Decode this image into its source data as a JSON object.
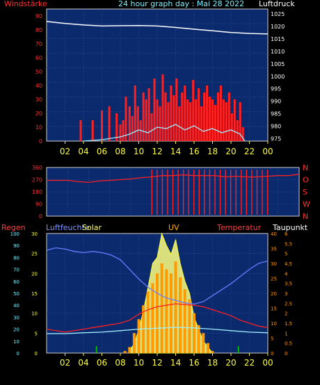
{
  "header": {
    "left_label": "Windstärke",
    "center_label": "24 hour graph day : Mai 28 2022",
    "right_label": "Luftdruck"
  },
  "colors": {
    "plot_bg": "#0b2a6e",
    "frame": "#000000",
    "grid": "#3a5cae",
    "red": "#ff2020",
    "white": "#ffffff",
    "cyan": "#a0f0ff",
    "yellow": "#ffff40",
    "orange": "#ff9a00",
    "blue_line": "#6a7cff",
    "green": "#00d000",
    "wind_axis": "#ff3030",
    "pressure_axis": "#ffffff",
    "time_axis": "#ffff40",
    "label_cyan": "#7ff0ff"
  },
  "chart_data": [
    {
      "type": "line",
      "title": "24 hour graph day : Mai 28 2022",
      "xlabel": "",
      "x_ticks": [
        "02",
        "04",
        "06",
        "08",
        "10",
        "12",
        "14",
        "16",
        "18",
        "20",
        "22",
        "00"
      ],
      "y_left": {
        "label": "Windstärke",
        "ticks": [
          0,
          10,
          20,
          30,
          40,
          50,
          60,
          70,
          80,
          90
        ],
        "ylim": [
          0,
          95
        ]
      },
      "y_right": {
        "label": "Luftdruck",
        "ticks": [
          975,
          980,
          985,
          990,
          995,
          1000,
          1005,
          1010,
          1015,
          1020,
          1025
        ],
        "ylim": [
          974,
          1027
        ]
      },
      "series": [
        {
          "name": "Luftdruck",
          "axis": "right",
          "color": "white",
          "x": [
            0,
            2,
            4,
            6,
            8,
            10,
            12,
            14,
            16,
            18,
            20,
            22,
            24
          ],
          "values": [
            1022,
            1021.2,
            1020.6,
            1020.2,
            1020.3,
            1020.4,
            1020.2,
            1019.6,
            1018.9,
            1018.3,
            1017.6,
            1017.2,
            1017.0
          ]
        },
        {
          "name": "Böen",
          "axis": "left",
          "color": "red",
          "x": [
            3.7,
            3.9,
            5.0,
            5.4,
            6.0,
            6.3,
            6.8,
            7.2,
            7.6,
            8.0,
            8.3,
            8.6,
            9.0,
            9.3,
            9.6,
            9.9,
            10.2,
            10.5,
            10.8,
            11.1,
            11.4,
            11.7,
            12.0,
            12.3,
            12.6,
            12.9,
            13.2,
            13.5,
            13.8,
            14.1,
            14.4,
            14.7,
            15.0,
            15.3,
            15.6,
            15.9,
            16.2,
            16.5,
            16.8,
            17.1,
            17.4,
            17.7,
            18.0,
            18.3,
            18.6,
            18.9,
            19.2,
            19.5,
            19.8,
            20.1,
            20.4,
            20.7,
            21.0,
            21.3
          ],
          "values": [
            15,
            0,
            15,
            0,
            22,
            0,
            25,
            0,
            20,
            12,
            15,
            32,
            25,
            18,
            40,
            25,
            15,
            35,
            30,
            38,
            20,
            45,
            30,
            25,
            48,
            35,
            28,
            40,
            33,
            45,
            25,
            35,
            40,
            30,
            28,
            44,
            30,
            38,
            25,
            35,
            40,
            32,
            30,
            26,
            35,
            40,
            30,
            28,
            35,
            20,
            30,
            15,
            28,
            10
          ]
        },
        {
          "name": "Wind",
          "axis": "left",
          "color": "cyan",
          "x": [
            4,
            6,
            7,
            8,
            9,
            10,
            11,
            12,
            13,
            14,
            15,
            16,
            17,
            18,
            19,
            20,
            21,
            21.5
          ],
          "values": [
            0,
            1,
            2,
            3,
            5,
            8,
            6,
            10,
            9,
            12,
            8,
            11,
            7,
            9,
            6,
            8,
            5,
            0
          ]
        }
      ]
    },
    {
      "type": "scatter",
      "title": "",
      "y_left": {
        "label": "",
        "ticks": [
          0,
          90,
          180,
          270,
          360
        ],
        "ylim": [
          0,
          360
        ]
      },
      "y_right": {
        "label": "",
        "ticks": [
          "N",
          "W",
          "S",
          "O",
          "N"
        ]
      },
      "series": [
        {
          "name": "Windrichtung",
          "color": "red",
          "x": [
            0,
            2,
            3,
            4,
            5,
            6,
            7,
            8,
            9,
            10,
            11,
            12,
            13,
            14,
            15,
            16,
            17,
            18,
            19,
            20,
            21,
            22,
            23,
            24
          ],
          "values": [
            265,
            265,
            255,
            250,
            260,
            265,
            270,
            275,
            285,
            290,
            300,
            300,
            305,
            300,
            300,
            300,
            290,
            295,
            290,
            290,
            295,
            300,
            300,
            310
          ]
        }
      ]
    },
    {
      "type": "line",
      "title": "",
      "labels": [
        "Regen",
        "Luftfeuchte",
        "Solar",
        "UV",
        "Temperatur",
        "Taupunkt"
      ],
      "x_ticks": [
        "02",
        "04",
        "06",
        "08",
        "10",
        "12",
        "14",
        "16",
        "18",
        "20",
        "22",
        "00"
      ],
      "axis_regen": {
        "ticks": [
          0,
          10,
          20,
          30,
          40,
          50,
          60,
          70,
          80,
          90,
          100
        ],
        "ylim": [
          0,
          100
        ]
      },
      "axis_feuchte": {
        "ticks": [
          0,
          5,
          10,
          15,
          20,
          25,
          30
        ],
        "ylim": [
          0,
          30
        ]
      },
      "axis_temp": {
        "ticks": [
          0,
          5,
          10,
          15,
          20,
          25,
          30,
          35,
          40
        ],
        "ylim": [
          0,
          40
        ]
      },
      "axis_uv": {
        "ticks": [
          0,
          0.5,
          1,
          1.5,
          2,
          2.5,
          3,
          3.5,
          4,
          4.5,
          5,
          5.5,
          6
        ],
        "ylim": [
          0,
          6
        ]
      },
      "series": [
        {
          "name": "Luftfeuchte",
          "color": "blue",
          "x": [
            0,
            1,
            2,
            3,
            4,
            5,
            6,
            7,
            8,
            9,
            10,
            11,
            12,
            13,
            14,
            15,
            16,
            17,
            18,
            19,
            20,
            21,
            22,
            23,
            24
          ],
          "values": [
            86,
            88,
            87,
            85,
            84,
            85,
            84,
            82,
            78,
            70,
            62,
            55,
            50,
            46,
            44,
            42,
            41,
            43,
            48,
            53,
            58,
            64,
            70,
            75,
            77
          ]
        },
        {
          "name": "Temperatur",
          "color": "red",
          "x": [
            0,
            2,
            4,
            6,
            8,
            9,
            10,
            11,
            12,
            13,
            14,
            15,
            16,
            17,
            18,
            19,
            20,
            21,
            22,
            23,
            24
          ],
          "values": [
            8,
            7,
            8,
            9,
            10,
            11,
            13,
            14.5,
            15.5,
            16,
            16.5,
            16.2,
            16,
            15.5,
            14.5,
            13.5,
            12.5,
            11,
            10,
            9,
            8.5
          ]
        },
        {
          "name": "Taupunkt",
          "color": "cyan",
          "x": [
            0,
            2,
            4,
            6,
            8,
            10,
            12,
            14,
            16,
            18,
            20,
            22,
            24
          ],
          "values": [
            6.5,
            6.5,
            6.8,
            7,
            7.5,
            8,
            8.3,
            8.6,
            8.4,
            8,
            7.5,
            7,
            6.8
          ]
        },
        {
          "name": "Solar",
          "color": "yellow",
          "x": [
            9,
            9.5,
            10,
            10.5,
            11,
            11.5,
            12,
            12.5,
            13,
            13.5,
            14,
            14.5,
            15,
            15.5,
            16,
            16.5,
            17,
            17.5,
            18
          ],
          "values": [
            1,
            3,
            8,
            14,
            22,
            30,
            32,
            40,
            36,
            33,
            38,
            30,
            24,
            20,
            12,
            8,
            4,
            2,
            0
          ]
        },
        {
          "name": "UV",
          "color": "orange",
          "x": [
            8.5,
            9,
            9.5,
            10,
            10.5,
            11,
            11.5,
            12,
            12.5,
            13,
            13.5,
            14,
            14.5,
            15,
            15.5,
            16,
            16.5,
            17,
            17.5,
            18
          ],
          "values": [
            0.1,
            0.3,
            1.0,
            1.7,
            2.4,
            3.1,
            3.5,
            4.0,
            4.5,
            4.2,
            4.0,
            4.6,
            3.8,
            3.2,
            2.7,
            2.0,
            1.4,
            1.0,
            0.5,
            0.1
          ]
        }
      ]
    }
  ]
}
